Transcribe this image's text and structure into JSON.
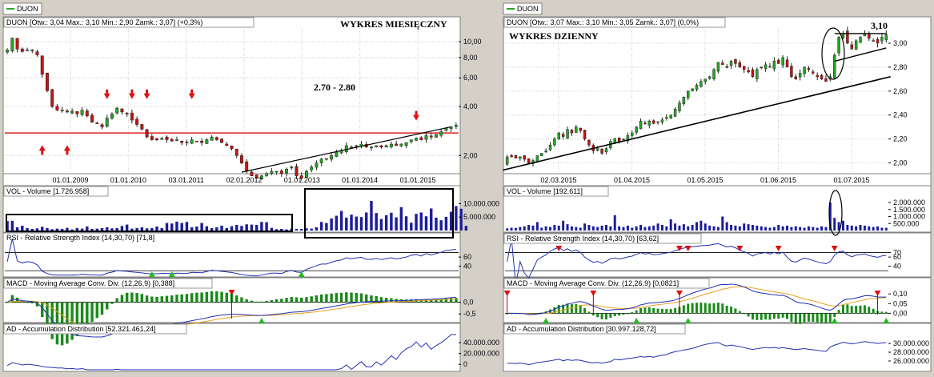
{
  "chart_data": [
    {
      "type": "candlestick",
      "panel": "left",
      "tab_label": "DUON",
      "header": "DUON [Otw.: 3,04  Max.: 3,10  Min.: 2,90  Zamk.: 3,07] (+0,3%)",
      "title": "WYKRES MIESIĘCZNY",
      "annotation": "2.70 - 2.80",
      "y_scale": "log",
      "ylim": [
        1.6,
        12
      ],
      "yticks": [
        "10,00",
        "8,00",
        "6,00",
        "4,00",
        "2,00"
      ],
      "ytick_values": [
        10,
        8,
        6,
        4,
        2
      ],
      "xticks": [
        "01.01.2009",
        "01.01.2010",
        "03.01.2011",
        "02.01.2012",
        "01.01.2013",
        "01.01.2014",
        "01.01.2015"
      ],
      "x_range": [
        "2008-01",
        "2015-07"
      ],
      "support_level": 2.75,
      "close": [
        8.9,
        10.5,
        9.0,
        8.7,
        8.9,
        8.8,
        8.3,
        6.3,
        5.0,
        4.0,
        3.8,
        3.8,
        3.7,
        3.75,
        3.6,
        3.8,
        3.5,
        3.2,
        3.15,
        3.0,
        3.4,
        3.6,
        3.9,
        3.7,
        3.6,
        3.3,
        3.1,
        2.9,
        2.6,
        2.5,
        2.5,
        2.55,
        2.5,
        2.45,
        2.5,
        2.4,
        2.4,
        2.5,
        2.45,
        2.4,
        2.5,
        2.6,
        2.5,
        2.4,
        2.3,
        2.2,
        2.0,
        1.8,
        1.6,
        1.5,
        1.45,
        1.5,
        1.55,
        1.6,
        1.6,
        1.55,
        1.65,
        1.7,
        1.5,
        1.45,
        1.6,
        1.7,
        1.8,
        1.9,
        1.9,
        2.0,
        2.1,
        2.15,
        2.3,
        2.25,
        2.3,
        2.35,
        2.25,
        2.25,
        2.3,
        2.25,
        2.3,
        2.35,
        2.3,
        2.35,
        2.4,
        2.5,
        2.55,
        2.5,
        2.65,
        2.6,
        2.7,
        2.8,
        2.95,
        3.0,
        3.07
      ],
      "volume": {
        "header": "VOL - Volume [1.726.958]",
        "yticks": [
          "10.000.000",
          "5.000.000"
        ],
        "ytick_values": [
          10000000,
          5000000
        ],
        "ylim": [
          0,
          12500000
        ],
        "values": [
          3500000,
          3600000,
          1200000,
          1800000,
          900000,
          600000,
          800000,
          1400000,
          900000,
          500000,
          700000,
          600000,
          1000000,
          400000,
          900000,
          700000,
          1500000,
          600000,
          700000,
          900000,
          1200000,
          800000,
          900000,
          1700000,
          2200000,
          700000,
          900000,
          1200000,
          800000,
          900000,
          1500000,
          900000,
          2800000,
          2600000,
          3300000,
          2800000,
          3200000,
          1200000,
          1500000,
          2800000,
          1600000,
          900000,
          1200000,
          1800000,
          900000,
          1600000,
          2100000,
          1700000,
          2300000,
          2200000,
          2100000,
          3200000,
          3100000,
          1000000,
          500000,
          600000,
          400000,
          700000,
          600000,
          600000,
          800000,
          700000,
          1200000,
          3200000,
          2800000,
          4500000,
          5500000,
          7300000,
          4800000,
          5900000,
          5200000,
          5000000,
          6700000,
          11000000,
          6500000,
          4300000,
          5700000,
          6600000,
          4900000,
          8700000,
          5300000,
          2900000,
          6200000,
          6700000,
          5300000,
          8200000,
          4800000,
          3800000,
          5100000,
          7000000,
          9100000,
          8100000,
          1726958
        ]
      },
      "rsi": {
        "header": "RSI - Relative Strength Index (14,30,70) [71,8]",
        "yticks": [
          "60",
          "40"
        ],
        "ytick_values": [
          60,
          40
        ],
        "ylim": [
          20,
          90
        ]
      },
      "macd": {
        "header": "MACD - Moving Average Conv. Div. (12,26,9) [0,388]",
        "yticks": [
          "0,0",
          "-0,5"
        ],
        "ytick_values": [
          0,
          -0.5
        ],
        "ylim": [
          -0.8,
          0.6
        ]
      },
      "ad": {
        "header": "AD - Accumulation Distribution [52.321.461,24]",
        "yticks": [
          "40.000.000",
          "20.000.000",
          "0"
        ],
        "ytick_values": [
          40000000,
          20000000,
          0
        ],
        "ylim": [
          -10000000,
          55000000
        ]
      }
    },
    {
      "type": "candlestick",
      "panel": "right",
      "tab_label": "DUON",
      "header": "DUON [Otw.: 3,07  Max.: 3,10  Min.: 3,05  Zamk.: 3,07] (0,0%)",
      "title": "WYKRES DZIENNY",
      "annotation": "3,10",
      "ylim": [
        1.93,
        3.12
      ],
      "yticks": [
        "3,00",
        "2,80",
        "2,60",
        "2,40",
        "2,20",
        "2,00"
      ],
      "ytick_values": [
        3.0,
        2.8,
        2.6,
        2.4,
        2.2,
        2.0
      ],
      "xticks": [
        "02.03.2015",
        "01.04.2015",
        "01.05.2015",
        "01.06.2015",
        "01.07.2015"
      ],
      "x_range": [
        "2015-02-16",
        "2015-07-20"
      ],
      "close": [
        2.05,
        2.05,
        2.04,
        2.05,
        2.03,
        2.0,
        2.02,
        2.06,
        2.08,
        2.1,
        2.15,
        2.2,
        2.25,
        2.22,
        2.28,
        2.25,
        2.3,
        2.27,
        2.2,
        2.15,
        2.1,
        2.12,
        2.08,
        2.12,
        2.18,
        2.2,
        2.18,
        2.2,
        2.23,
        2.25,
        2.3,
        2.35,
        2.33,
        2.35,
        2.33,
        2.34,
        2.36,
        2.38,
        2.4,
        2.45,
        2.5,
        2.55,
        2.6,
        2.62,
        2.65,
        2.68,
        2.7,
        2.72,
        2.78,
        2.84,
        2.82,
        2.8,
        2.85,
        2.83,
        2.8,
        2.78,
        2.76,
        2.72,
        2.78,
        2.8,
        2.82,
        2.8,
        2.85,
        2.83,
        2.88,
        2.8,
        2.72,
        2.7,
        2.75,
        2.8,
        2.78,
        2.75,
        2.72,
        2.7,
        2.68,
        2.72,
        2.9,
        3.05,
        3.08,
        3.0,
        2.95,
        3.02,
        3.05,
        3.08,
        3.04,
        3.02,
        3.0,
        3.05,
        3.07
      ],
      "volume": {
        "header": "VOL - Volume [192.611]",
        "yticks": [
          "2.000.000",
          "1.500.000",
          "1.000.000",
          "500.000"
        ],
        "ytick_values": [
          2000000,
          1500000,
          1000000,
          500000
        ],
        "ylim": [
          0,
          2400000
        ],
        "values": [
          150000,
          200000,
          180000,
          250000,
          300000,
          400000,
          350000,
          600000,
          200000,
          300000,
          250000,
          400000,
          350000,
          700000,
          450000,
          300000,
          250000,
          200000,
          500000,
          400000,
          300000,
          250000,
          350000,
          400000,
          300000,
          1100000,
          300000,
          250000,
          350000,
          200000,
          300000,
          400000,
          250000,
          300000,
          350000,
          500000,
          400000,
          300000,
          800000,
          500000,
          350000,
          450000,
          300000,
          400000,
          600000,
          700000,
          500000,
          350000,
          300000,
          250000,
          1000000,
          600000,
          400000,
          350000,
          300000,
          500000,
          450000,
          400000,
          350000,
          300000,
          250000,
          200000,
          250000,
          400000,
          300000,
          350000,
          250000,
          300000,
          250000,
          200000,
          300000,
          250000,
          200000,
          300000,
          250000,
          2000000,
          900000,
          600000,
          700000,
          400000,
          350000,
          300000,
          400000,
          350000,
          300000,
          250000,
          300000,
          200000,
          192611
        ]
      },
      "rsi": {
        "header": "RSI - Relative Strength Index (14,30,70) [63,62]",
        "yticks": [
          "70",
          "60",
          "40"
        ],
        "ytick_values": [
          70,
          60,
          40
        ],
        "ylim": [
          20,
          90
        ]
      },
      "macd": {
        "header": "MACD - Moving Average Conv. Div. (12,26,9) [0,0821]",
        "yticks": [
          "0,10",
          "0,05",
          "0,00"
        ],
        "ytick_values": [
          0.1,
          0.05,
          0.0
        ],
        "ylim": [
          -0.04,
          0.13
        ]
      },
      "ad": {
        "header": "AD - Accumulation Distribution [30.997.128,72]",
        "yticks": [
          "30.000.000",
          "28.000.000",
          "26.000.000"
        ],
        "ytick_values": [
          30000000,
          28000000,
          26000000
        ],
        "ylim": [
          24000000,
          32000000
        ]
      }
    }
  ],
  "colors": {
    "up_candle": "#22aa22",
    "down_candle": "#cc1111",
    "volume_bar": "#1c1c9c",
    "indicator_line": "#2030b0",
    "signal_line": "#e8a020",
    "support_line": "#dd2222",
    "marker_red": "#dd1111",
    "marker_green": "#22bb22",
    "panel_bg": "#ffffff",
    "frame_bg": "#d4d0c8"
  }
}
